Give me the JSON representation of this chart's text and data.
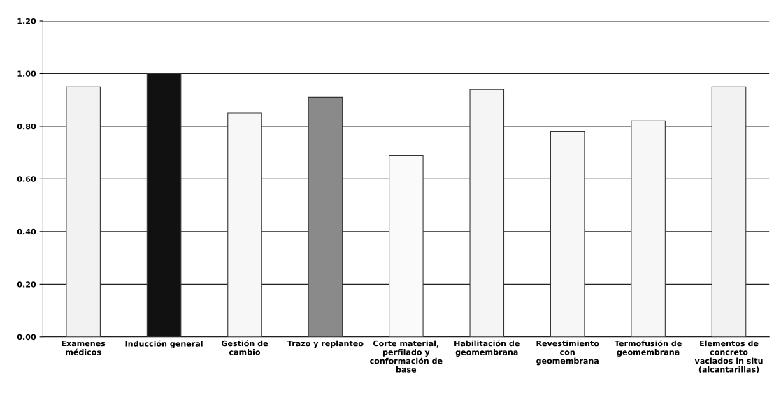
{
  "chart_data": {
    "type": "bar",
    "categories": [
      "Examenes\nmédicos",
      "Inducción general",
      "Gestión de\ncambio",
      "Trazo y replanteo",
      "Corte material,\nperfilado y\nconformación de\nbase",
      "Habilitación de\ngeomembrana",
      "Revestimiento\ncon\ngeomembrana",
      "Termofusión de\ngeomembrana",
      "Elementos de\nconcreto\nvaciados in situ\n(alcantarillas)"
    ],
    "values": [
      0.95,
      1.0,
      0.85,
      0.91,
      0.69,
      0.94,
      0.78,
      0.82,
      0.95
    ],
    "colors": [
      "#f2f2f2",
      "#111111",
      "#f7f7f7",
      "#8a8a8a",
      "#fafafa",
      "#f5f5f5",
      "#f7f7f7",
      "#f7f7f7",
      "#f2f2f2"
    ],
    "ylim": [
      0,
      1.2
    ],
    "yticks": [
      {
        "value": 0,
        "label": "0.00"
      },
      {
        "value": 0.2,
        "label": "0.20"
      },
      {
        "value": 0.4,
        "label": "0.40"
      },
      {
        "value": 0.6,
        "label": "0.60"
      },
      {
        "value": 0.8,
        "label": "0.80"
      },
      {
        "value": 1.0,
        "label": "1.00"
      },
      {
        "value": 1.2,
        "label": "1.20"
      }
    ],
    "grid": "y"
  }
}
